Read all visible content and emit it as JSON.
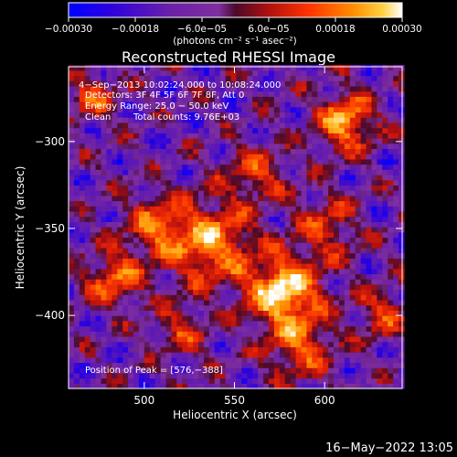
{
  "chart_data": {
    "type": "heatmap",
    "title": "Reconstructed RHESSI Image",
    "xlabel": "Heliocentric X (arcsec)",
    "ylabel": "Heliocentric Y (arcsec)",
    "xlim": [
      458,
      643
    ],
    "ylim": [
      -442,
      -257
    ],
    "x_ticks": [
      {
        "value": 500,
        "label": "500"
      },
      {
        "value": 550,
        "label": "550"
      },
      {
        "value": 600,
        "label": "600"
      }
    ],
    "y_ticks": [
      {
        "value": -300,
        "label": "−300"
      },
      {
        "value": -350,
        "label": "−350"
      },
      {
        "value": -400,
        "label": "−400"
      }
    ],
    "colorbar": {
      "range": [
        -0.0003,
        0.0003
      ],
      "tick_labels": [
        "−0.00030",
        "−0.00018",
        "−6.0e−05",
        "6.0e−05",
        "0.00018",
        "0.00030"
      ],
      "units_label": "(photons cm⁻² s⁻¹ asec⁻²)",
      "colors": [
        "#0000ff",
        "#2a00e0",
        "#6a1fa8",
        "#7f2fa0",
        "#6a0c3a",
        "#b01010",
        "#ff3300",
        "#ff8c00",
        "#ffd040",
        "#ffffff"
      ]
    },
    "annotations": {
      "time_range": "4−Sep−2013 10:02:24.000 to 10:08:24.000",
      "detectors": "Detectors: 3F 4F 5F 6F 7F 8F, Att 0",
      "energy_range": "Energy Range: 25.0 − 50.0 keV",
      "clean_label": "Clean",
      "total_counts": "Total counts: 9.76E+03",
      "peak_position": "Position of Peak = [576,−388]"
    },
    "peak": {
      "x": 576,
      "y": -388
    },
    "sources": [
      {
        "x": 576,
        "y": -388,
        "amplitude": 1.0,
        "sigma": 14
      },
      {
        "x": 535,
        "y": -360,
        "amplitude": 0.75,
        "sigma": 16
      },
      {
        "x": 505,
        "y": -350,
        "amplitude": 0.55,
        "sigma": 12
      },
      {
        "x": 482,
        "y": -380,
        "amplitude": 0.6,
        "sigma": 11
      },
      {
        "x": 610,
        "y": -290,
        "amplitude": 0.8,
        "sigma": 11
      },
      {
        "x": 560,
        "y": -320,
        "amplitude": 0.45,
        "sigma": 12
      },
      {
        "x": 600,
        "y": -350,
        "amplitude": 0.45,
        "sigma": 12
      },
      {
        "x": 585,
        "y": -420,
        "amplitude": 0.55,
        "sigma": 12
      },
      {
        "x": 520,
        "y": -410,
        "amplitude": 0.4,
        "sigma": 10
      },
      {
        "x": 470,
        "y": -275,
        "amplitude": 0.5,
        "sigma": 9
      },
      {
        "x": 630,
        "y": -400,
        "amplitude": 0.45,
        "sigma": 10
      }
    ]
  },
  "timestamp": "16−May−2022 13:05"
}
